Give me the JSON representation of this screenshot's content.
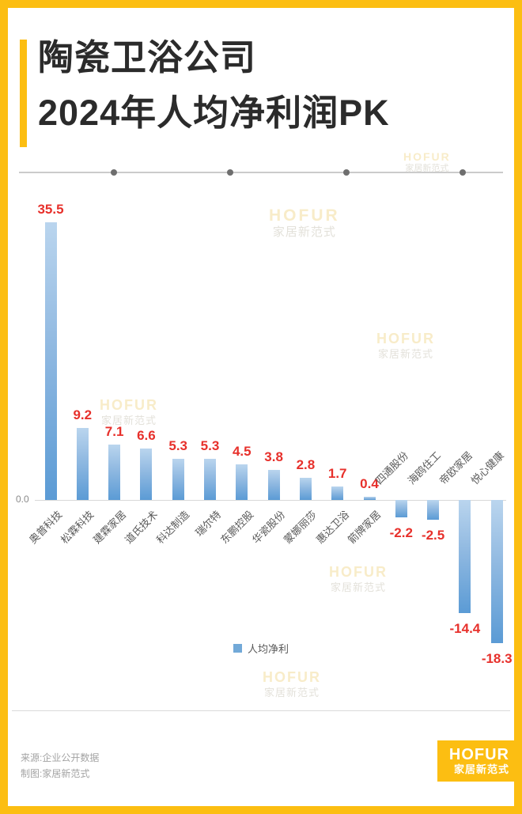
{
  "title": {
    "line1": "陶瓷卫浴公司",
    "line2": "2024年人均净利润PK"
  },
  "watermark": {
    "line1": "HOFUR",
    "line2": "家居新范式"
  },
  "chart_data": {
    "type": "bar",
    "title": "陶瓷卫浴公司2024年人均净利润PK",
    "categories": [
      "奥普科技",
      "松霖科技",
      "建霖家居",
      "道氏技术",
      "科达制造",
      "瑞尔特",
      "东鹏控股",
      "华瓷股份",
      "蒙娜丽莎",
      "惠达卫浴",
      "箭牌家居",
      "四通股份",
      "海鸥住工",
      "帝欧家居",
      "悦心健康"
    ],
    "values": [
      35.5,
      9.2,
      7.1,
      6.6,
      5.3,
      5.3,
      4.5,
      3.8,
      2.8,
      1.7,
      0.4,
      -2.2,
      -2.5,
      -14.4,
      -18.3
    ],
    "series": [
      {
        "name": "人均净利",
        "values": [
          35.5,
          9.2,
          7.1,
          6.6,
          5.3,
          5.3,
          4.5,
          3.8,
          2.8,
          1.7,
          0.4,
          -2.2,
          -2.5,
          -14.4,
          -18.3
        ]
      }
    ],
    "xlabel": "",
    "ylabel": "",
    "ylim": [
      -20,
      37
    ],
    "axis_baseline_label": "0.0",
    "grid": false,
    "legend_position": "bottom",
    "legend_label": "人均净利",
    "bar_color_top": "#bad5ee",
    "bar_color_bottom": "#5b9bd5",
    "value_label_color": "#e7302b"
  },
  "legend": {
    "label": "人均净利"
  },
  "footer": {
    "source_line1": "来源:企业公开数据",
    "source_line2": "制图:家居新范式",
    "logo_line1": "HOFUR",
    "logo_line2": "家居新范式"
  },
  "colors": {
    "accent_yellow": "#fcbe12",
    "value_red": "#e7302b",
    "bar_top": "#bad5ee",
    "bar_bottom": "#5b9bd5",
    "legend_blue": "#72a9d8"
  }
}
